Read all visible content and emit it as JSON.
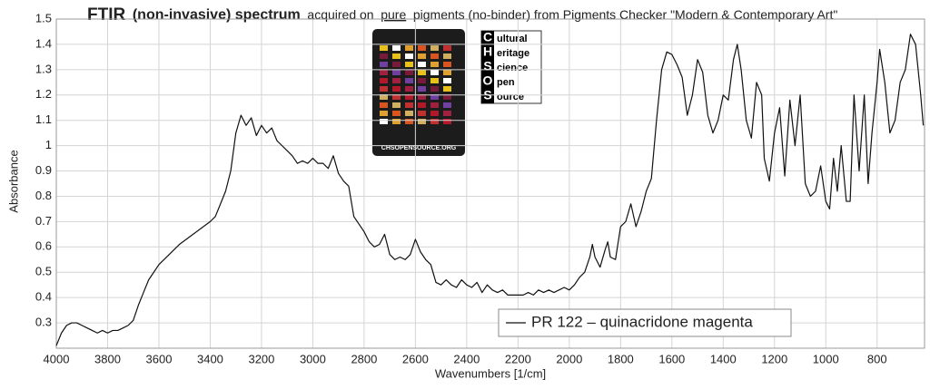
{
  "chart_data": {
    "type": "line",
    "title": [
      "FTIR",
      "(non-invasive) spectrum",
      "acquired on",
      "pure",
      "pigments (no-binder) from Pigments Checker \"Modern & Contemporary Art\""
    ],
    "xlabel": "Wavenumbers [1/cm]",
    "ylabel": "Absorbance",
    "xlim": [
      4000,
      615
    ],
    "ylim": [
      0.2,
      1.5
    ],
    "xticks": [
      4000,
      3800,
      3600,
      3400,
      3200,
      3000,
      2800,
      2600,
      2400,
      2200,
      2000,
      1800,
      1600,
      1400,
      1200,
      1000,
      800
    ],
    "yticks": [
      0.3,
      0.4,
      0.5,
      0.6,
      0.7,
      0.8,
      0.9,
      1,
      1.1,
      1.2,
      1.3,
      1.4,
      1.5
    ],
    "grid": true,
    "legend": "lower right",
    "logo": {
      "letters": [
        "C",
        "H",
        "S",
        "O",
        "S"
      ],
      "words": [
        "ultural",
        "eritage",
        "cience",
        "pen",
        "ource"
      ],
      "site": "CHSOPENSOURCE.ORG"
    },
    "x": [
      4000,
      3980,
      3960,
      3940,
      3920,
      3900,
      3880,
      3860,
      3840,
      3820,
      3800,
      3780,
      3760,
      3740,
      3720,
      3700,
      3680,
      3660,
      3640,
      3620,
      3600,
      3560,
      3520,
      3480,
      3440,
      3400,
      3380,
      3360,
      3340,
      3320,
      3300,
      3280,
      3260,
      3240,
      3220,
      3200,
      3180,
      3160,
      3140,
      3120,
      3100,
      3080,
      3060,
      3040,
      3020,
      3000,
      2980,
      2960,
      2940,
      2920,
      2900,
      2880,
      2860,
      2840,
      2820,
      2800,
      2780,
      2760,
      2740,
      2720,
      2700,
      2680,
      2660,
      2640,
      2620,
      2600,
      2580,
      2560,
      2540,
      2520,
      2500,
      2480,
      2460,
      2440,
      2420,
      2400,
      2380,
      2360,
      2340,
      2320,
      2300,
      2280,
      2260,
      2240,
      2220,
      2200,
      2180,
      2160,
      2140,
      2120,
      2100,
      2080,
      2060,
      2040,
      2020,
      2000,
      1980,
      1960,
      1940,
      1920,
      1910,
      1900,
      1880,
      1860,
      1850,
      1840,
      1820,
      1800,
      1780,
      1760,
      1740,
      1720,
      1700,
      1680,
      1660,
      1640,
      1620,
      1600,
      1580,
      1560,
      1540,
      1520,
      1500,
      1480,
      1460,
      1440,
      1420,
      1400,
      1380,
      1360,
      1345,
      1330,
      1310,
      1290,
      1270,
      1250,
      1240,
      1220,
      1200,
      1180,
      1160,
      1140,
      1120,
      1100,
      1080,
      1060,
      1040,
      1020,
      1000,
      985,
      970,
      955,
      940,
      920,
      905,
      890,
      870,
      850,
      835,
      820,
      800,
      790,
      770,
      750,
      730,
      710,
      690,
      670,
      650,
      630,
      620
    ],
    "series": [
      {
        "name": "PR 122 – quinacridone magenta",
        "color": "#111111",
        "values": [
          0.21,
          0.26,
          0.29,
          0.3,
          0.3,
          0.29,
          0.28,
          0.27,
          0.26,
          0.27,
          0.26,
          0.27,
          0.27,
          0.28,
          0.29,
          0.31,
          0.37,
          0.42,
          0.47,
          0.5,
          0.53,
          0.57,
          0.61,
          0.64,
          0.67,
          0.7,
          0.72,
          0.77,
          0.82,
          0.9,
          1.05,
          1.12,
          1.08,
          1.11,
          1.04,
          1.08,
          1.05,
          1.07,
          1.02,
          1.0,
          0.98,
          0.96,
          0.93,
          0.94,
          0.93,
          0.95,
          0.93,
          0.93,
          0.91,
          0.96,
          0.89,
          0.86,
          0.84,
          0.72,
          0.69,
          0.66,
          0.62,
          0.6,
          0.61,
          0.65,
          0.57,
          0.55,
          0.56,
          0.55,
          0.57,
          0.63,
          0.58,
          0.55,
          0.53,
          0.46,
          0.45,
          0.47,
          0.45,
          0.44,
          0.47,
          0.45,
          0.44,
          0.46,
          0.42,
          0.45,
          0.43,
          0.42,
          0.43,
          0.41,
          0.41,
          0.41,
          0.41,
          0.42,
          0.41,
          0.43,
          0.42,
          0.43,
          0.42,
          0.43,
          0.44,
          0.43,
          0.45,
          0.48,
          0.5,
          0.56,
          0.61,
          0.56,
          0.52,
          0.59,
          0.62,
          0.56,
          0.55,
          0.68,
          0.7,
          0.77,
          0.68,
          0.74,
          0.82,
          0.87,
          1.1,
          1.3,
          1.37,
          1.36,
          1.32,
          1.27,
          1.12,
          1.2,
          1.34,
          1.29,
          1.12,
          1.05,
          1.1,
          1.2,
          1.18,
          1.34,
          1.4,
          1.3,
          1.1,
          1.03,
          1.25,
          1.2,
          0.95,
          0.86,
          1.05,
          1.15,
          0.88,
          1.18,
          1.0,
          1.2,
          0.85,
          0.8,
          0.82,
          0.92,
          0.78,
          0.75,
          0.95,
          0.82,
          1.0,
          0.78,
          0.78,
          1.2,
          0.9,
          1.2,
          0.85,
          1.05,
          1.25,
          1.38,
          1.25,
          1.05,
          1.1,
          1.25,
          1.3,
          1.44,
          1.4,
          1.2,
          1.08
        ]
      }
    ]
  }
}
